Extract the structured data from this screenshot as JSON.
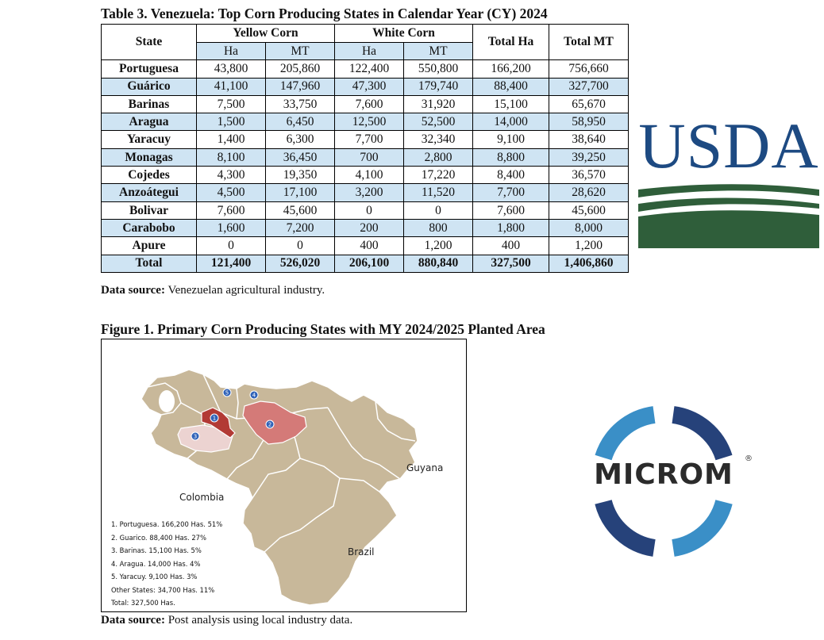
{
  "table": {
    "title": "Table 3. Venezuela: Top Corn Producing States in Calendar Year (CY) 2024",
    "headers": {
      "state": "State",
      "yellow": "Yellow Corn",
      "white": "White Corn",
      "total_ha": "Total Ha",
      "total_mt": "Total MT",
      "ha": "Ha",
      "mt": "MT"
    },
    "rows": [
      [
        "Portuguesa",
        "43,800",
        "205,860",
        "122,400",
        "550,800",
        "166,200",
        "756,660"
      ],
      [
        "Guárico",
        "41,100",
        "147,960",
        "47,300",
        "179,740",
        "88,400",
        "327,700"
      ],
      [
        "Barinas",
        "7,500",
        "33,750",
        "7,600",
        "31,920",
        "15,100",
        "65,670"
      ],
      [
        "Aragua",
        "1,500",
        "6,450",
        "12,500",
        "52,500",
        "14,000",
        "58,950"
      ],
      [
        "Yaracuy",
        "1,400",
        "6,300",
        "7,700",
        "32,340",
        "9,100",
        "38,640"
      ],
      [
        "Monagas",
        "8,100",
        "36,450",
        "700",
        "2,800",
        "8,800",
        "39,250"
      ],
      [
        "Cojedes",
        "4,300",
        "19,350",
        "4,100",
        "17,220",
        "8,400",
        "36,570"
      ],
      [
        "Anzoátegui",
        "4,500",
        "17,100",
        "3,200",
        "11,520",
        "7,700",
        "28,620"
      ],
      [
        "Bolivar",
        "7,600",
        "45,600",
        "0",
        "0",
        "7,600",
        "45,600"
      ],
      [
        "Carabobo",
        "1,600",
        "7,200",
        "200",
        "800",
        "1,800",
        "8,000"
      ],
      [
        "Apure",
        "0",
        "0",
        "400",
        "1,200",
        "400",
        "1,200"
      ]
    ],
    "total": [
      "Total",
      "121,400",
      "526,020",
      "206,100",
      "880,840",
      "327,500",
      "1,406,860"
    ],
    "source_label": "Data source:",
    "source_text": " Venezuelan agricultural industry."
  },
  "figure": {
    "title": "Figure 1. Primary Corn Producing States with MY 2024/2025 Planted Area",
    "labels": {
      "colombia": "Colombia",
      "guyana": "Guyana",
      "brazil": "Brazil"
    },
    "markers": [
      "1",
      "2",
      "3",
      "4",
      "5"
    ],
    "legend": [
      "1. Portuguesa. 166,200 Has. 51%",
      "2. Guarico. 88,400 Has. 27%",
      "3. Barinas. 15,100 Has. 5%",
      "4. Aragua. 14,000 Has. 4%",
      "5. Yaracuy. 9,100 Has. 3%",
      "Other States: 34,700 Has. 11%",
      "Total: 327,500 Has."
    ],
    "source_label": "Data source:",
    "source_text": " Post analysis using local industry data."
  },
  "logos": {
    "usda": "USDA",
    "microm": "MICROM",
    "registered": "®"
  },
  "colors": {
    "table_band": "#cfe4f3",
    "map_land": "#c8b89a",
    "portuguesa": "#b23a35",
    "guarico": "#d47a78",
    "barinas": "#ecd3d1",
    "usda_blue": "#1d4a82",
    "usda_green": "#2f5e3a",
    "microm_light_blue": "#3a8fc7",
    "microm_dark_blue": "#26427a"
  }
}
